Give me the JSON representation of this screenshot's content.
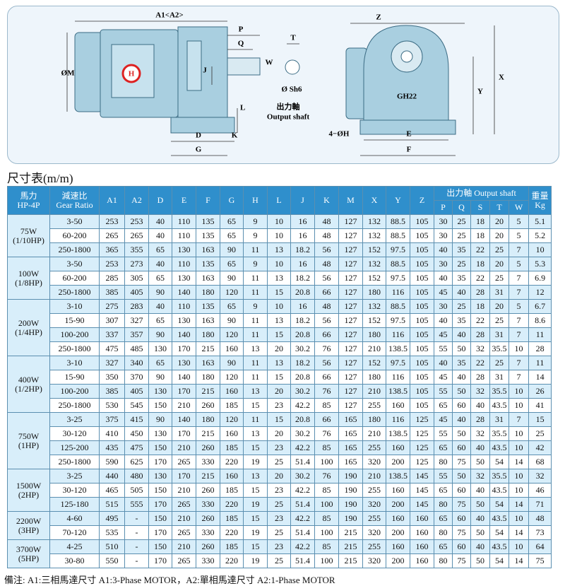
{
  "drawing": {
    "labels": {
      "a1a2": "A1<A2>",
      "p": "P",
      "q": "Q",
      "j": "J",
      "m": "ØM",
      "t": "T",
      "w": "W",
      "sh6": "Ø Sh6",
      "shaft_cn": "出力軸",
      "shaft_en": "Output shaft",
      "l": "L",
      "d": "D",
      "k": "K",
      "g": "G",
      "z": "Z",
      "x": "X",
      "y": "Y",
      "model": "GH22",
      "h4": "4−ØH",
      "e": "E",
      "f": "F",
      "logo": "H"
    }
  },
  "section_title": "尺寸表(m/m)",
  "table": {
    "header": {
      "hp": "馬力",
      "hp_en": "HP-4P",
      "ratio": "減速比",
      "ratio_en": "Gear Ratio",
      "columns": [
        "A1",
        "A2",
        "D",
        "E",
        "F",
        "G",
        "H",
        "L",
        "J",
        "K",
        "M",
        "X",
        "Y",
        "Z"
      ],
      "shaft": "出力軸 Output shaft",
      "shaft_columns": [
        "P",
        "Q",
        "S",
        "T",
        "W"
      ],
      "weight": "重量",
      "weight_en": "Kg"
    },
    "groups": [
      {
        "power": "75W",
        "hp": "(1/10HP)",
        "rows": [
          {
            "ratio": "3-50",
            "values": [
              253,
              253,
              40,
              110,
              135,
              65,
              9,
              10,
              16,
              48,
              127,
              132,
              88.5,
              105,
              30,
              25,
              18,
              20,
              5,
              5.1
            ]
          },
          {
            "ratio": "60-200",
            "values": [
              265,
              265,
              40,
              110,
              135,
              65,
              9,
              10,
              16,
              48,
              127,
              132,
              88.5,
              105,
              30,
              25,
              18,
              20,
              5,
              5.2
            ]
          },
          {
            "ratio": "250-1800",
            "values": [
              365,
              355,
              65,
              130,
              163,
              90,
              11,
              13,
              18.2,
              56,
              127,
              152,
              97.5,
              105,
              40,
              35,
              22,
              25,
              7,
              10
            ]
          }
        ]
      },
      {
        "power": "100W",
        "hp": "(1/8HP)",
        "rows": [
          {
            "ratio": "3-50",
            "values": [
              253,
              273,
              40,
              110,
              135,
              65,
              9,
              10,
              16,
              48,
              127,
              132,
              88.5,
              105,
              30,
              25,
              18,
              20,
              5,
              5.3
            ]
          },
          {
            "ratio": "60-200",
            "values": [
              285,
              305,
              65,
              130,
              163,
              90,
              11,
              13,
              18.2,
              56,
              127,
              152,
              97.5,
              105,
              40,
              35,
              22,
              25,
              7,
              6.9
            ]
          },
          {
            "ratio": "250-1800",
            "values": [
              385,
              405,
              90,
              140,
              180,
              120,
              11,
              15,
              20.8,
              66,
              127,
              180,
              116,
              105,
              45,
              40,
              28,
              31,
              7,
              12
            ]
          }
        ]
      },
      {
        "power": "200W",
        "hp": "(1/4HP)",
        "rows": [
          {
            "ratio": "3-10",
            "values": [
              275,
              283,
              40,
              110,
              135,
              65,
              9,
              10,
              16,
              48,
              127,
              132,
              88.5,
              105,
              30,
              25,
              18,
              20,
              5,
              6.7
            ]
          },
          {
            "ratio": "15-90",
            "values": [
              307,
              327,
              65,
              130,
              163,
              90,
              11,
              13,
              18.2,
              56,
              127,
              152,
              97.5,
              105,
              40,
              35,
              22,
              25,
              7,
              8.6
            ]
          },
          {
            "ratio": "100-200",
            "values": [
              337,
              357,
              90,
              140,
              180,
              120,
              11,
              15,
              20.8,
              66,
              127,
              180,
              116,
              105,
              45,
              40,
              28,
              31,
              7,
              11
            ]
          },
          {
            "ratio": "250-1800",
            "values": [
              475,
              485,
              130,
              170,
              215,
              160,
              13,
              20,
              30.2,
              76,
              127,
              210,
              138.5,
              105,
              55,
              50,
              32,
              35.5,
              10,
              28
            ]
          }
        ]
      },
      {
        "power": "400W",
        "hp": "(1/2HP)",
        "rows": [
          {
            "ratio": "3-10",
            "values": [
              327,
              340,
              65,
              130,
              163,
              90,
              11,
              13,
              18.2,
              56,
              127,
              152,
              97.5,
              105,
              40,
              35,
              22,
              25,
              7,
              11
            ]
          },
          {
            "ratio": "15-90",
            "values": [
              350,
              370,
              90,
              140,
              180,
              120,
              11,
              15,
              20.8,
              66,
              127,
              180,
              116,
              105,
              45,
              40,
              28,
              31,
              7,
              14
            ]
          },
          {
            "ratio": "100-200",
            "values": [
              385,
              405,
              130,
              170,
              215,
              160,
              13,
              20,
              30.2,
              76,
              127,
              210,
              138.5,
              105,
              55,
              50,
              32,
              35.5,
              10,
              26
            ]
          },
          {
            "ratio": "250-1800",
            "values": [
              530,
              545,
              150,
              210,
              260,
              185,
              15,
              23,
              42.2,
              85,
              127,
              255,
              160,
              105,
              65,
              60,
              40,
              43.5,
              10,
              41
            ]
          }
        ]
      },
      {
        "power": "750W",
        "hp": "(1HP)",
        "rows": [
          {
            "ratio": "3-25",
            "values": [
              375,
              415,
              90,
              140,
              180,
              120,
              11,
              15,
              20.8,
              66,
              165,
              180,
              116,
              125,
              45,
              40,
              28,
              31,
              7,
              15
            ]
          },
          {
            "ratio": "30-120",
            "values": [
              410,
              450,
              130,
              170,
              215,
              160,
              13,
              20,
              30.2,
              76,
              165,
              210,
              138.5,
              125,
              55,
              50,
              32,
              35.5,
              10,
              25
            ]
          },
          {
            "ratio": "125-200",
            "values": [
              435,
              475,
              150,
              210,
              260,
              185,
              15,
              23,
              42.2,
              85,
              165,
              255,
              160,
              125,
              65,
              60,
              40,
              43.5,
              10,
              42
            ]
          },
          {
            "ratio": "250-1800",
            "values": [
              590,
              625,
              170,
              265,
              330,
              220,
              19,
              25,
              51.4,
              100,
              165,
              320,
              200,
              125,
              80,
              75,
              50,
              54,
              14,
              68
            ]
          }
        ]
      },
      {
        "power": "1500W",
        "hp": "(2HP)",
        "rows": [
          {
            "ratio": "3-25",
            "values": [
              440,
              480,
              130,
              170,
              215,
              160,
              13,
              20,
              30.2,
              76,
              190,
              210,
              138.5,
              145,
              55,
              50,
              32,
              35.5,
              10,
              32
            ]
          },
          {
            "ratio": "30-120",
            "values": [
              465,
              505,
              150,
              210,
              260,
              185,
              15,
              23,
              42.2,
              85,
              190,
              255,
              160,
              145,
              65,
              60,
              40,
              43.5,
              10,
              46
            ]
          },
          {
            "ratio": "125-180",
            "values": [
              515,
              555,
              170,
              265,
              330,
              220,
              19,
              25,
              51.4,
              100,
              190,
              320,
              200,
              145,
              80,
              75,
              50,
              54,
              14,
              71
            ]
          }
        ]
      },
      {
        "power": "2200W",
        "hp": "(3HP)",
        "rows": [
          {
            "ratio": "4-60",
            "values": [
              495,
              "-",
              150,
              210,
              260,
              185,
              15,
              23,
              42.2,
              85,
              190,
              255,
              160,
              160,
              65,
              60,
              40,
              43.5,
              10,
              48
            ]
          },
          {
            "ratio": "70-120",
            "values": [
              535,
              "-",
              170,
              265,
              330,
              220,
              19,
              25,
              51.4,
              100,
              215,
              320,
              200,
              160,
              80,
              75,
              50,
              54,
              14,
              73
            ]
          }
        ]
      },
      {
        "power": "3700W",
        "hp": "(5HP)",
        "rows": [
          {
            "ratio": "4-25",
            "values": [
              510,
              "-",
              150,
              210,
              260,
              185,
              15,
              23,
              42.2,
              85,
              215,
              255,
              160,
              160,
              65,
              60,
              40,
              43.5,
              10,
              64
            ]
          },
          {
            "ratio": "30-80",
            "values": [
              550,
              "-",
              170,
              265,
              330,
              220,
              19,
              25,
              51.4,
              100,
              215,
              320,
              200,
              160,
              80,
              75,
              50,
              54,
              14,
              75
            ]
          }
        ]
      }
    ]
  },
  "footer": {
    "note": "備注: A1:三相馬達尺寸  A1:3-Phase MOTOR，A2:單相馬達尺寸  A2:1-Phase MOTOR"
  }
}
